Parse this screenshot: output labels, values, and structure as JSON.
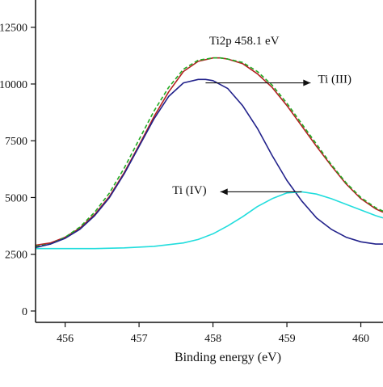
{
  "chart_data": {
    "type": "line",
    "title": "",
    "xlabel": "Binding energy (eV)",
    "ylabel": "",
    "xlim": [
      455.6,
      460.3
    ],
    "ylim": [
      -500,
      13700
    ],
    "grid": false,
    "legend": "none",
    "x_ticks": [
      456,
      457,
      458,
      459,
      460
    ],
    "x_tick_labels": [
      "456",
      "457",
      "458",
      "459",
      "460"
    ],
    "y_ticks": [
      0,
      2500,
      5000,
      7500,
      10000,
      12500
    ],
    "y_tick_labels": [
      "0",
      "2500",
      "5000",
      "7500",
      "10000",
      "12500"
    ],
    "series": [
      {
        "color": "#b22222",
        "style": "solid",
        "x": [
          455.6,
          455.8,
          456.0,
          456.2,
          456.4,
          456.6,
          456.8,
          457.0,
          457.2,
          457.4,
          457.6,
          457.8,
          458.0,
          458.1,
          458.2,
          458.4,
          458.6,
          458.8,
          459.0,
          459.2,
          459.4,
          459.6,
          459.8,
          460.0,
          460.2,
          460.3
        ],
        "y": [
          2900,
          3000,
          3250,
          3650,
          4250,
          5050,
          6100,
          7300,
          8550,
          9650,
          10550,
          11000,
          11150,
          11150,
          11100,
          10900,
          10450,
          9850,
          9050,
          8150,
          7250,
          6400,
          5600,
          4950,
          4500,
          4350
        ]
      },
      {
        "color": "#22aa22",
        "style": "dashed",
        "x": [
          455.6,
          455.8,
          456.0,
          456.2,
          456.4,
          456.6,
          456.8,
          457.0,
          457.2,
          457.4,
          457.6,
          457.8,
          458.0,
          458.1,
          458.2,
          458.4,
          458.6,
          458.8,
          459.0,
          459.2,
          459.4,
          459.6,
          459.8,
          460.0,
          460.2,
          460.3
        ],
        "y": [
          2850,
          2950,
          3250,
          3700,
          4350,
          5200,
          6300,
          7550,
          8800,
          9850,
          10650,
          11050,
          11150,
          11150,
          11100,
          10950,
          10550,
          9950,
          9150,
          8250,
          7350,
          6450,
          5650,
          5000,
          4550,
          4400
        ]
      },
      {
        "color": "#22228b",
        "style": "solid",
        "x": [
          455.6,
          455.8,
          456.0,
          456.2,
          456.4,
          456.6,
          456.8,
          457.0,
          457.2,
          457.4,
          457.6,
          457.8,
          457.9,
          458.0,
          458.2,
          458.4,
          458.6,
          458.8,
          459.0,
          459.2,
          459.4,
          459.6,
          459.8,
          460.0,
          460.2,
          460.3
        ],
        "y": [
          2800,
          2950,
          3200,
          3600,
          4200,
          5000,
          6050,
          7250,
          8450,
          9450,
          10050,
          10200,
          10200,
          10150,
          9800,
          9050,
          8050,
          6850,
          5750,
          4850,
          4100,
          3600,
          3250,
          3050,
          2950,
          2950
        ]
      },
      {
        "color": "#22dddd",
        "style": "solid",
        "x": [
          455.6,
          456.0,
          456.4,
          456.8,
          457.2,
          457.6,
          457.8,
          458.0,
          458.2,
          458.4,
          458.6,
          458.8,
          459.0,
          459.2,
          459.4,
          459.6,
          459.8,
          460.0,
          460.2,
          460.3
        ],
        "y": [
          2750,
          2750,
          2750,
          2780,
          2850,
          3000,
          3150,
          3400,
          3750,
          4150,
          4600,
          4950,
          5200,
          5250,
          5150,
          4950,
          4700,
          4450,
          4200,
          4100
        ]
      }
    ],
    "annotations": [
      {
        "text": "Ti2p 458.1 eV",
        "x": 457.95,
        "y": 11750
      },
      {
        "text": "Ti (III)",
        "x": 459.42,
        "y": 10050,
        "arrow_from": [
          459.32,
          10050
        ],
        "arrow_to": [
          457.9,
          10050
        ]
      },
      {
        "text": "Ti (IV)",
        "x": 457.45,
        "y": 5150,
        "arrow_from": [
          459.2,
          5250
        ],
        "arrow_to": [
          458.1,
          5250
        ]
      }
    ]
  }
}
